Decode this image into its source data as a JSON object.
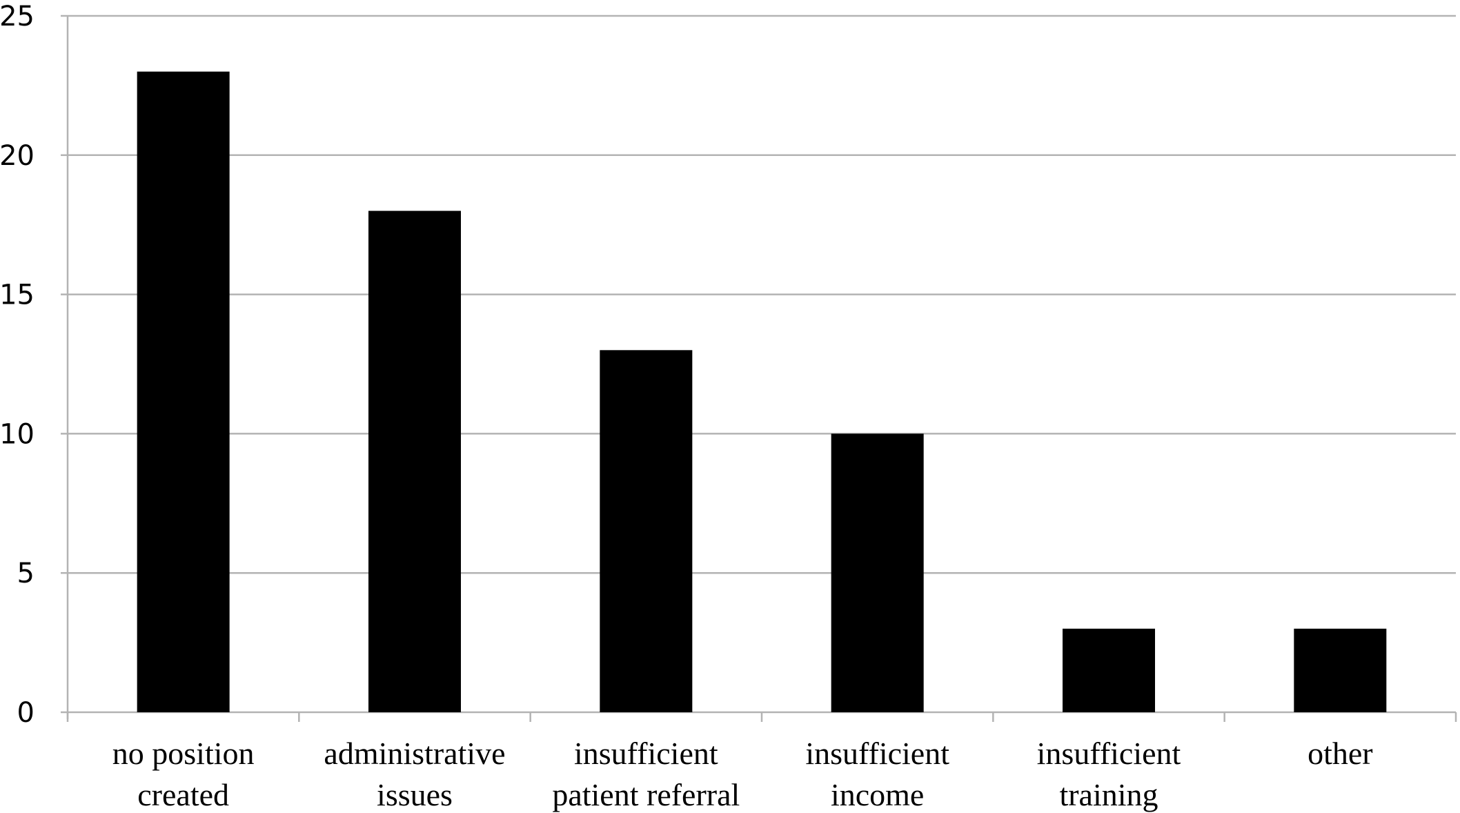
{
  "chart_data": {
    "type": "bar",
    "categories": [
      [
        "no position",
        "created"
      ],
      [
        "administrative",
        "issues"
      ],
      [
        "insufficient",
        "patient referral"
      ],
      [
        "insufficient",
        "income"
      ],
      [
        "insufficient",
        "training"
      ],
      [
        "other"
      ]
    ],
    "values": [
      23,
      18,
      13,
      10,
      3,
      3
    ],
    "ylim": [
      0,
      25
    ],
    "yticks": [
      "0",
      "5",
      "10",
      "15",
      "20",
      "25"
    ],
    "grid": true,
    "legend": "none",
    "colors": {
      "bar": "#000000",
      "grid": "#b3b3b3",
      "axis": "#b3b3b3"
    }
  }
}
